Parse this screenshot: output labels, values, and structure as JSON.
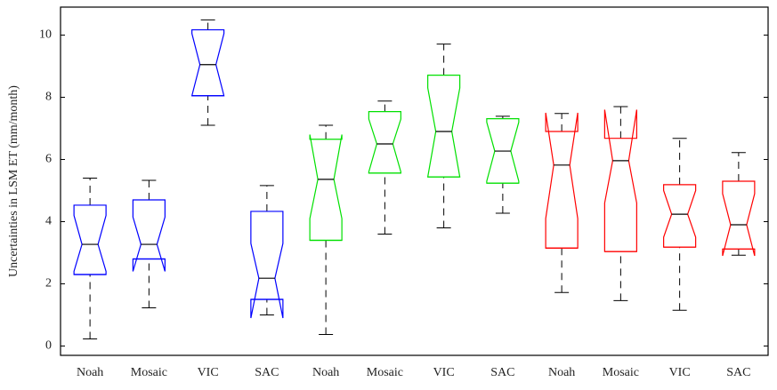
{
  "chart_data": {
    "type": "boxplot",
    "y_label": "Uncertainties in LSM ET (mm/month)",
    "categories": [
      "Noah",
      "Mosaic",
      "VIC",
      "SAC",
      "Noah",
      "Mosaic",
      "VIC",
      "SAC",
      "Noah",
      "Mosaic",
      "VIC",
      "SAC"
    ],
    "ylim": [
      -0.3,
      10.9
    ],
    "yticks": [
      0,
      2,
      4,
      6,
      8,
      10
    ],
    "boxes": [
      {
        "color": "#0000ff",
        "whisker_low": 0.23,
        "q1": 2.3,
        "median": 3.27,
        "q3": 4.53,
        "whisker_high": 5.4,
        "notch_low": 2.4,
        "notch_high": 4.2
      },
      {
        "color": "#0000ff",
        "whisker_low": 1.23,
        "q1": 2.8,
        "median": 3.27,
        "q3": 4.7,
        "whisker_high": 5.33,
        "notch_low": 2.4,
        "notch_high": 4.15
      },
      {
        "color": "#0000ff",
        "whisker_low": 7.1,
        "q1": 8.05,
        "median": 9.05,
        "q3": 10.17,
        "whisker_high": 10.49,
        "notch_low": 8.05,
        "notch_high": 10.05
      },
      {
        "color": "#0000ff",
        "whisker_low": 1.0,
        "q1": 1.5,
        "median": 2.18,
        "q3": 4.33,
        "whisker_high": 5.16,
        "notch_low": 0.9,
        "notch_high": 3.3
      },
      {
        "color": "#00e000",
        "whisker_low": 0.37,
        "q1": 3.4,
        "median": 5.36,
        "q3": 6.65,
        "whisker_high": 7.1,
        "notch_low": 4.1,
        "notch_high": 6.8
      },
      {
        "color": "#00e000",
        "whisker_low": 3.6,
        "q1": 5.56,
        "median": 6.5,
        "q3": 7.54,
        "whisker_high": 7.88,
        "notch_low": 5.6,
        "notch_high": 7.3
      },
      {
        "color": "#00e000",
        "whisker_low": 3.8,
        "q1": 5.44,
        "median": 6.9,
        "q3": 8.71,
        "whisker_high": 9.71,
        "notch_low": 5.44,
        "notch_high": 8.3
      },
      {
        "color": "#00e000",
        "whisker_low": 4.27,
        "q1": 5.24,
        "median": 6.27,
        "q3": 7.31,
        "whisker_high": 7.39,
        "notch_low": 5.3,
        "notch_high": 7.2
      },
      {
        "color": "#ff0000",
        "whisker_low": 1.72,
        "q1": 3.15,
        "median": 5.82,
        "q3": 6.9,
        "whisker_high": 7.48,
        "notch_low": 4.1,
        "notch_high": 7.5
      },
      {
        "color": "#ff0000",
        "whisker_low": 1.46,
        "q1": 3.04,
        "median": 5.96,
        "q3": 6.68,
        "whisker_high": 7.7,
        "notch_low": 4.6,
        "notch_high": 7.6
      },
      {
        "color": "#ff0000",
        "whisker_low": 1.15,
        "q1": 3.18,
        "median": 4.24,
        "q3": 5.19,
        "whisker_high": 6.68,
        "notch_low": 3.5,
        "notch_high": 5.0
      },
      {
        "color": "#ff0000",
        "whisker_low": 2.92,
        "q1": 3.12,
        "median": 3.9,
        "q3": 5.3,
        "whisker_high": 6.22,
        "notch_low": 2.9,
        "notch_high": 4.9
      }
    ]
  }
}
